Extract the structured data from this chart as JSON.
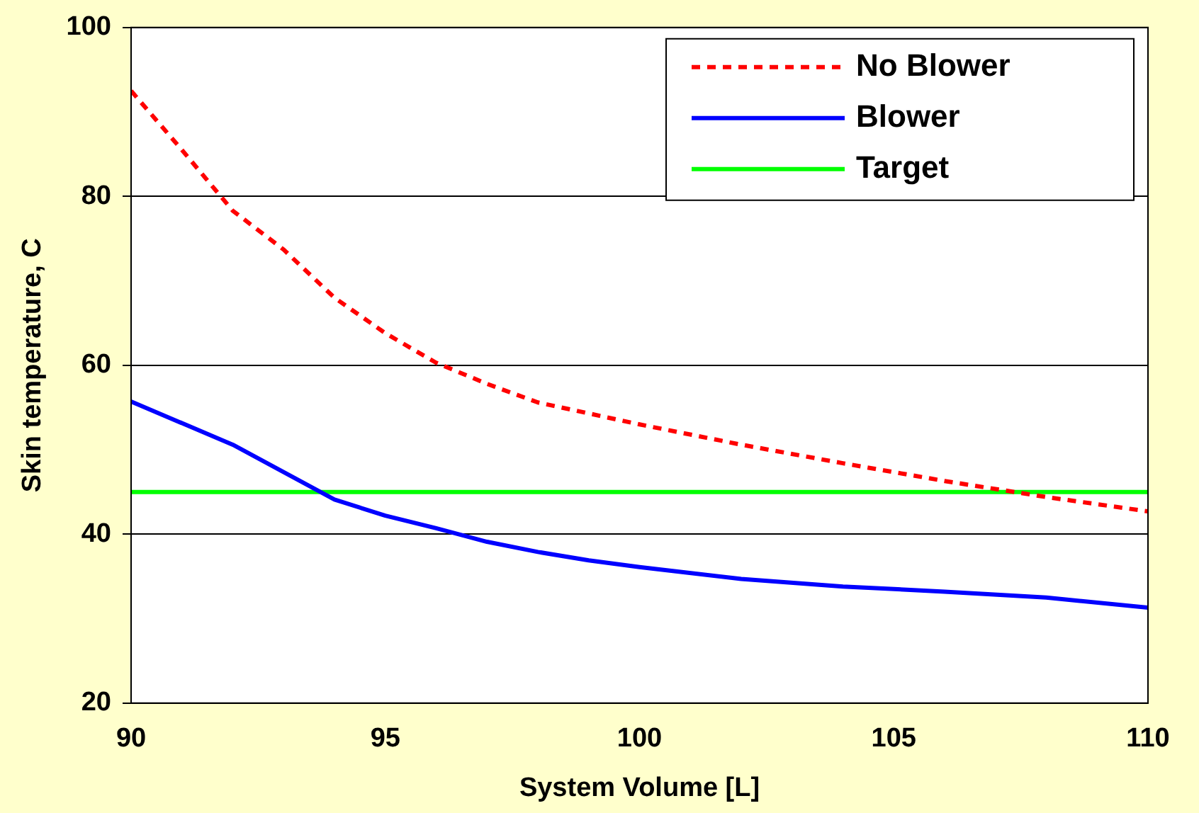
{
  "chart_data": {
    "type": "line",
    "xlabel": "System Volume [L]",
    "ylabel": "Skin temperature, C",
    "xlim": [
      90,
      110
    ],
    "xticks": [
      90,
      95,
      100,
      105,
      110
    ],
    "ylim": [
      20,
      100
    ],
    "yticks": [
      20,
      40,
      60,
      80,
      100
    ],
    "grid": "y",
    "legend": "top right",
    "marker": "none",
    "series": [
      {
        "name": "No Blower",
        "color": "#ff0000",
        "line_style": "dashed",
        "x": [
          90,
          91,
          92,
          93,
          94,
          95,
          96,
          97,
          98,
          100,
          102,
          104,
          106,
          108,
          110
        ],
        "values": [
          92.5,
          85.5,
          78.3,
          73.7,
          68,
          63.8,
          60.3,
          57.8,
          55.6,
          53,
          50.6,
          48.4,
          46.3,
          44.4,
          42.7
        ]
      },
      {
        "name": "Blower",
        "color": "#0000ff",
        "line_style": "solid",
        "x": [
          90,
          92,
          94,
          95,
          96,
          97,
          98,
          99,
          100,
          102,
          104,
          106,
          108,
          110
        ],
        "values": [
          55.7,
          50.6,
          44.1,
          42.2,
          40.7,
          39.1,
          37.9,
          36.9,
          36.1,
          34.7,
          33.8,
          33.2,
          32.5,
          31.3
        ]
      },
      {
        "name": "Target",
        "color": "#00ff00",
        "line_style": "solid",
        "x": [
          90,
          110
        ],
        "values": [
          45,
          45
        ]
      }
    ]
  }
}
